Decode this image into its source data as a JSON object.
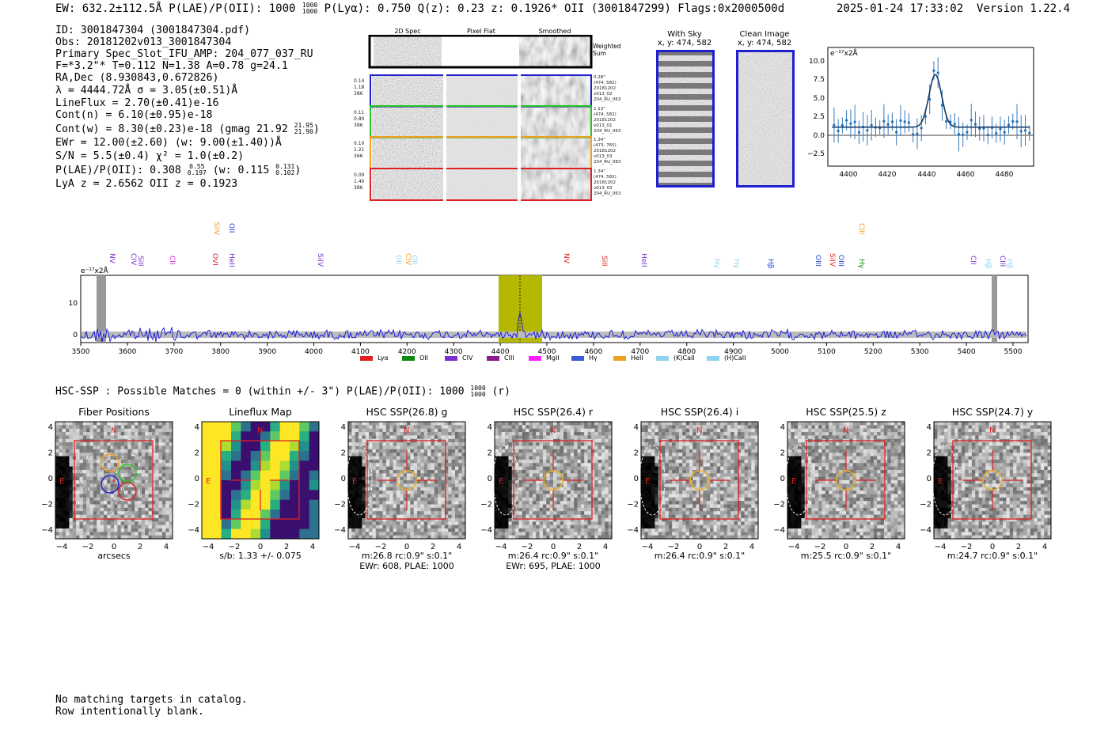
{
  "header": {
    "summary": "EW: 632.2±112.5Å  P(LAE)/P(OII): 1000",
    "plae_frac_top": "1000",
    "plae_frac_bottom": "1000",
    "summary_rest": "P(Lyα): 0.750  Q(z): 0.23  z: 0.1926*  OII  (3001847299)  Flags:0x2000500d",
    "datetime": "2025-01-24 17:33:02",
    "version": "Version 1.22.4"
  },
  "info": [
    "ID: 3001847304 (3001847304.pdf)",
    "Obs: 20181202v013_3001847304",
    "Primary Spec_Slot_IFU_AMP: 204_077_037_RU",
    "F=*3.2\"*  T=0.112  N=1.38  A=0.78  g=24.1",
    "RA,Dec (8.930843,0.672826)",
    "λ = 4444.72Å  σ = 3.05(±0.51)Å",
    "LineFlux = 2.70(±0.41)e-16",
    "Cont(n) = 6.10(±0.95)e-18",
    "Cont(w) = 8.30(±0.23)e-18 (gmag 21.92",
    "EWr = 12.00(±2.60) (w: 9.00(±1.40))Å",
    "S/N = 5.5(±0.4)  χ² = 1.0(±0.2)",
    "P(LAE)/P(OII): 0.308",
    "LyA z = 2.6562  OII z = 0.1923"
  ],
  "info_fracs": {
    "gmag_top": "21.95",
    "gmag_bottom": "21.90",
    "plae_top": "0.55",
    "plae_bottom": "0.197",
    "plae_w": "(w: 0.115",
    "plae_w_top": "0.131",
    "plae_w_bottom": "0.102"
  },
  "cutouts": {
    "col_2d": "2D Spec",
    "col_flat": "Pixel Flat",
    "col_smooth": "Smoothed",
    "weighted_sum": "Weighted Sum",
    "rows": [
      {
        "left": [
          "0.14",
          "1.18",
          "386"
        ],
        "right": [
          "0.28\"",
          "(474, 582)",
          "20181202",
          "v013_02",
          "204_RU_063"
        ],
        "color": "#1f1fcf"
      },
      {
        "left": [
          "0.11",
          "0.80",
          "386"
        ],
        "right": [
          "1.13\"",
          "(474, 582)",
          "20181202",
          "v013_01",
          "204_RU_063"
        ],
        "color": "#22c522"
      },
      {
        "left": [
          "0.10",
          "1.21",
          "366"
        ],
        "right": [
          "1.34\"",
          "(473, 765)",
          "20181202",
          "v013_03",
          "204_RU_083"
        ],
        "color": "#f0a020"
      },
      {
        "left": [
          "0.09",
          "1.40",
          "386"
        ],
        "right": [
          "1.34\"",
          "(474, 582)",
          "20181202",
          "v013_03",
          "204_RU_063"
        ],
        "color": "#e02020"
      }
    ]
  },
  "sky_panels": {
    "with_sky": "With Sky",
    "with_sky_xy": "x, y: 474, 582",
    "clean": "Clean Image",
    "clean_xy": "x, y: 474, 582"
  },
  "zoom_plot": {
    "unit": "e⁻¹⁷x2Å",
    "yticks": [
      "10.0",
      "7.5",
      "5.0",
      "2.5",
      "0.0",
      "−2.5"
    ],
    "xticks": [
      "4400",
      "4420",
      "4440",
      "4460",
      "4480"
    ]
  },
  "spectrum": {
    "unit": "e⁻¹⁷x2Å",
    "yticks": [
      "10",
      "0"
    ],
    "xticks": [
      "3500",
      "3600",
      "3700",
      "3800",
      "3900",
      "4000",
      "4100",
      "4200",
      "4300",
      "4400",
      "4500",
      "4600",
      "4700",
      "4800",
      "4900",
      "5000",
      "5100",
      "5200",
      "5300",
      "5400",
      "5500"
    ],
    "line_labels": [
      {
        "text": "NV",
        "x": 136,
        "y": 320,
        "color": "#7a2ecf"
      },
      {
        "text": "CIV",
        "x": 163,
        "y": 320,
        "color": "#7a2ecf"
      },
      {
        "text": "SiII",
        "x": 172,
        "y": 323,
        "color": "#7a2ecf"
      },
      {
        "text": "CII",
        "x": 212,
        "y": 323,
        "color": "#e020e0"
      },
      {
        "text": "SiIV",
        "x": 268,
        "y": 280,
        "color": "#f0a020"
      },
      {
        "text": "OII",
        "x": 287,
        "y": 282,
        "color": "#2040d0"
      },
      {
        "text": "OVI",
        "x": 266,
        "y": 320,
        "color": "#e02020"
      },
      {
        "text": "HeII",
        "x": 287,
        "y": 320,
        "color": "#7a2ecf"
      },
      {
        "text": "SiIV",
        "x": 399,
        "y": 320,
        "color": "#7a2ecf"
      },
      {
        "text": "OII",
        "x": 498,
        "y": 322,
        "color": "#8fd3f0"
      },
      {
        "text": "CIV",
        "x": 510,
        "y": 320,
        "color": "#f0a020"
      },
      {
        "text": "OII",
        "x": 518,
        "y": 322,
        "color": "#8fd3f0"
      },
      {
        "text": "NV",
        "x": 710,
        "y": 320,
        "color": "#e02020"
      },
      {
        "text": "SiII",
        "x": 758,
        "y": 323,
        "color": "#e02020"
      },
      {
        "text": "HeII",
        "x": 808,
        "y": 320,
        "color": "#7a2ecf"
      },
      {
        "text": "Hγ",
        "x": 900,
        "y": 327,
        "color": "#8fd3f0"
      },
      {
        "text": "Hγ",
        "x": 925,
        "y": 327,
        "color": "#8fd3f0"
      },
      {
        "text": "Hβ",
        "x": 968,
        "y": 327,
        "color": "#2040d0"
      },
      {
        "text": "OIII",
        "x": 1028,
        "y": 322,
        "color": "#2040d0"
      },
      {
        "text": "SiIV",
        "x": 1046,
        "y": 320,
        "color": "#e02020"
      },
      {
        "text": "OIII",
        "x": 1057,
        "y": 322,
        "color": "#2040d0"
      },
      {
        "text": "Hγ",
        "x": 1083,
        "y": 327,
        "color": "#0a8a0a"
      },
      {
        "text": "CIII",
        "x": 1083,
        "y": 282,
        "color": "#f0a020"
      },
      {
        "text": "CII",
        "x": 1224,
        "y": 323,
        "color": "#7a2ecf"
      },
      {
        "text": "Hβ",
        "x": 1243,
        "y": 327,
        "color": "#8fd3f0"
      },
      {
        "text": "CIII",
        "x": 1261,
        "y": 323,
        "color": "#7a2ecf"
      },
      {
        "text": "Hβ",
        "x": 1270,
        "y": 327,
        "color": "#8fd3f0"
      }
    ],
    "legend": [
      {
        "label": "Lyα",
        "color": "#e02020"
      },
      {
        "label": "OII",
        "color": "#0a8a0a"
      },
      {
        "label": "CIV",
        "color": "#7a2ecf"
      },
      {
        "label": "CIII",
        "color": "#8a1a8a"
      },
      {
        "label": "MgII",
        "color": "#ff20ff"
      },
      {
        "label": "Hγ",
        "color": "#3a5ad8"
      },
      {
        "label": "HeII",
        "color": "#f0a020"
      },
      {
        "label": "(K)CaII",
        "color": "#8fd3f0"
      },
      {
        "label": "(H)CaII",
        "color": "#8fd3f0"
      }
    ]
  },
  "hsc": {
    "header_text": "HSC-SSP : Possible Matches = 0 (within +/- 3\")  P(LAE)/P(OII): 1000",
    "header_frac_top": "1000",
    "header_frac_bottom": "1000",
    "header_suffix": "(r)",
    "north": "N",
    "east": "E",
    "axis_ticks": [
      "4",
      "2",
      "0",
      "−2",
      "−4"
    ],
    "x_ticks": [
      "−4",
      "−2",
      "0",
      "2",
      "4"
    ],
    "panels": [
      {
        "title": "Fiber Positions",
        "caption1": "arcsecs",
        "caption2": ""
      },
      {
        "title": "Lineflux Map",
        "caption1": "s/b: 1.33 +/- 0.075",
        "caption2": ""
      },
      {
        "title": "HSC SSP(26.8) g",
        "caption1": "m:26.8 rc:0.9\"  s:0.1\"",
        "caption2": "EWr: 608, PLAE: 1000"
      },
      {
        "title": "HSC SSP(26.4) r",
        "caption1": "m:26.4 rc:0.9\"  s:0.1\"",
        "caption2": "EWr: 695, PLAE: 1000"
      },
      {
        "title": "HSC SSP(26.4) i",
        "caption1": "m:26.4 rc:0.9\"  s:0.1\"",
        "caption2": ""
      },
      {
        "title": "HSC SSP(25.5) z",
        "caption1": "m:25.5 rc:0.9\"  s:0.1\"",
        "caption2": ""
      },
      {
        "title": "HSC SSP(24.7) y",
        "caption1": "m:24.7 rc:0.9\"  s:0.1\"",
        "caption2": ""
      }
    ]
  },
  "footer": {
    "line1": "No matching targets in catalog.",
    "line2": "Row intentionally blank."
  },
  "colors": {
    "spectrum_line": "#1010e0",
    "highlight": "#b5b800",
    "box_red": "#e02020"
  }
}
